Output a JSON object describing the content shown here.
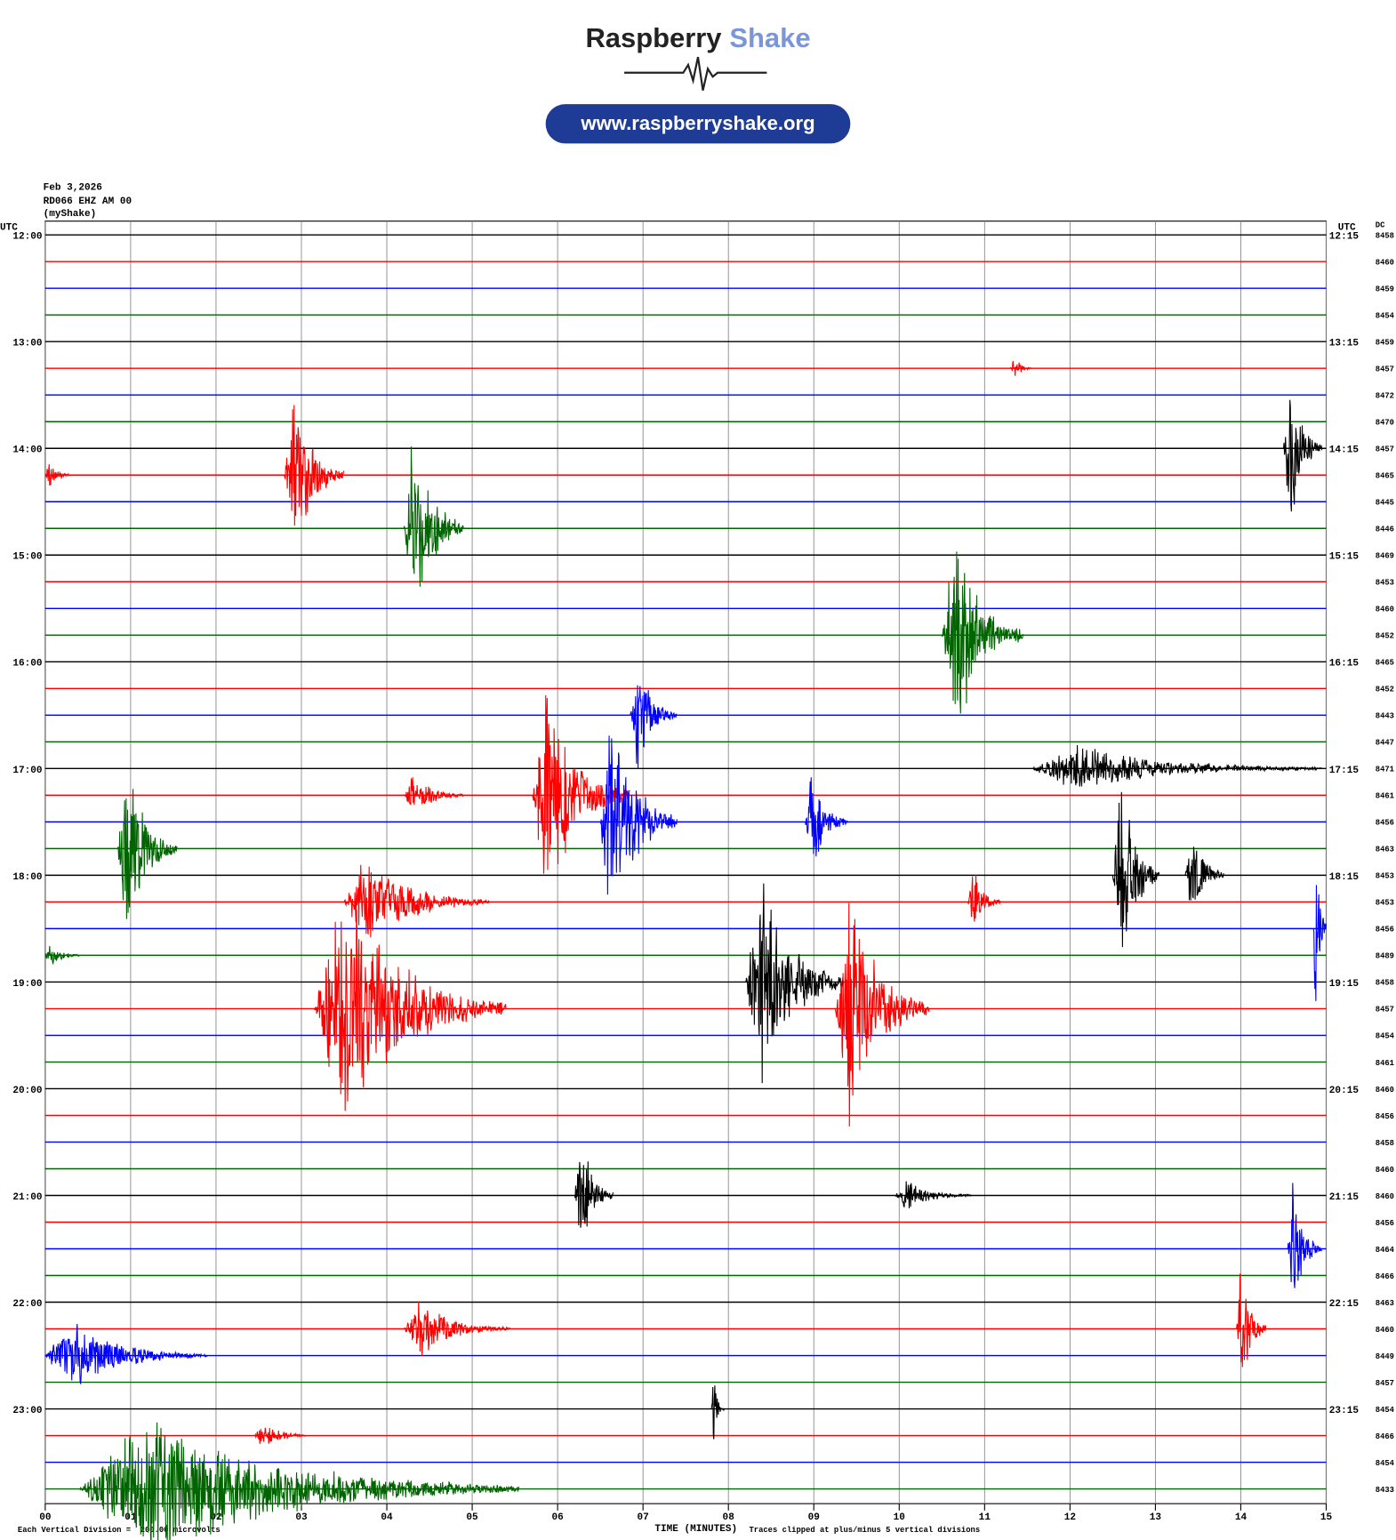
{
  "header": {
    "brand": "Raspberry",
    "brand_accent": "Shake",
    "url": "www.raspberryshake.org"
  },
  "chart_data": {
    "type": "helicorder",
    "date": "Feb 3,2026",
    "station": "RD066 EHZ AM 00",
    "owner": "(myShake)",
    "left_axis_label": "UTC",
    "right_axis_label": "UTC",
    "dc_label": "DC",
    "xlabel": "TIME (MINUTES)",
    "footer_left": "Each Vertical Division =  200.00 microvolts",
    "footer_right": "Traces clipped at plus/minus 5 vertical divisions",
    "xlim": [
      0,
      15
    ],
    "xticks": [
      {
        "value": 0,
        "label": "00"
      },
      {
        "value": 1,
        "label": "01"
      },
      {
        "value": 2,
        "label": "02"
      },
      {
        "value": 3,
        "label": "03"
      },
      {
        "value": 4,
        "label": "04"
      },
      {
        "value": 5,
        "label": "05"
      },
      {
        "value": 6,
        "label": "06"
      },
      {
        "value": 7,
        "label": "07"
      },
      {
        "value": 8,
        "label": "08"
      },
      {
        "value": 9,
        "label": "09"
      },
      10,
      11,
      12,
      13,
      14,
      15
    ],
    "colors": [
      "#000000",
      "#ff0000",
      "#0000ff",
      "#006400"
    ],
    "row_labels_left": [
      "12:00",
      "13:00",
      "14:00",
      "15:00",
      "16:00",
      "17:00",
      "18:00",
      "19:00",
      "20:00",
      "21:00",
      "22:00",
      "23:00"
    ],
    "row_labels_right": [
      "12:15",
      "13:15",
      "14:15",
      "15:15",
      "16:15",
      "17:15",
      "18:15",
      "19:15",
      "20:15",
      "21:15",
      "22:15",
      "23:15"
    ],
    "dc": [
      8458,
      8460,
      8459,
      8454,
      8459,
      8457,
      8472,
      8470,
      8457,
      8465,
      8445,
      8446,
      8469,
      8453,
      8460,
      8452,
      8465,
      8452,
      8443,
      8447,
      8471,
      8461,
      8456,
      8463,
      8453,
      8453,
      8456,
      8489,
      8458,
      8457,
      8454,
      8461,
      8460,
      8456,
      8458,
      8460,
      8460,
      8456,
      8464,
      8466,
      8463,
      8460,
      8449,
      8457,
      8454,
      8466,
      8454,
      8433
    ],
    "events": [
      {
        "trace": 5,
        "start": 11.3,
        "end": 11.55,
        "amplitude": 0.6
      },
      {
        "trace": 8,
        "start": 14.5,
        "end": 14.95,
        "amplitude": 3.5
      },
      {
        "trace": 9,
        "start": 0,
        "end": 0.3,
        "amplitude": 0.6
      },
      {
        "trace": 9,
        "start": 2.8,
        "end": 3.5,
        "amplitude": 3.5
      },
      {
        "trace": 11,
        "start": 4.2,
        "end": 4.9,
        "amplitude": 4.5
      },
      {
        "trace": 15,
        "start": 10.5,
        "end": 11.45,
        "amplitude": 4.5
      },
      {
        "trace": 18,
        "start": 6.85,
        "end": 7.4,
        "amplitude": 2.5
      },
      {
        "trace": 20,
        "start": 11.55,
        "end": 14.95,
        "amplitude": 1
      },
      {
        "trace": 21,
        "start": 5.7,
        "end": 6.85,
        "amplitude": 4.5
      },
      {
        "trace": 21,
        "start": 4.2,
        "end": 4.9,
        "amplitude": 1
      },
      {
        "trace": 22,
        "start": 6.5,
        "end": 7.4,
        "amplitude": 5
      },
      {
        "trace": 22,
        "start": 8.9,
        "end": 9.4,
        "amplitude": 2.5
      },
      {
        "trace": 23,
        "start": 0.85,
        "end": 1.55,
        "amplitude": 4
      },
      {
        "trace": 24,
        "start": 12.5,
        "end": 13.05,
        "amplitude": 5
      },
      {
        "trace": 24,
        "start": 13.35,
        "end": 13.8,
        "amplitude": 2.5
      },
      {
        "trace": 25,
        "start": 3.5,
        "end": 5.2,
        "amplitude": 2
      },
      {
        "trace": 25,
        "start": 10.8,
        "end": 11.2,
        "amplitude": 1.5
      },
      {
        "trace": 26,
        "start": 14.85,
        "end": 15,
        "amplitude": 5
      },
      {
        "trace": 27,
        "start": 0,
        "end": 0.4,
        "amplitude": 0.6
      },
      {
        "trace": 28,
        "start": 8.2,
        "end": 9.35,
        "amplitude": 5
      },
      {
        "trace": 29,
        "start": 3.15,
        "end": 5.4,
        "amplitude": 5
      },
      {
        "trace": 29,
        "start": 9.25,
        "end": 10.35,
        "amplitude": 5
      },
      {
        "trace": 36,
        "start": 6.2,
        "end": 6.65,
        "amplitude": 3
      },
      {
        "trace": 36,
        "start": 9.95,
        "end": 10.85,
        "amplitude": 0.7
      },
      {
        "trace": 38,
        "start": 14.55,
        "end": 14.95,
        "amplitude": 3
      },
      {
        "trace": 41,
        "start": 4.2,
        "end": 5.45,
        "amplitude": 1.2
      },
      {
        "trace": 41,
        "start": 13.95,
        "end": 14.3,
        "amplitude": 3
      },
      {
        "trace": 42,
        "start": 0,
        "end": 1.9,
        "amplitude": 1.5
      },
      {
        "trace": 44,
        "start": 7.8,
        "end": 7.95,
        "amplitude": 1.5
      },
      {
        "trace": 45,
        "start": 2.45,
        "end": 3.05,
        "amplitude": 0.7
      },
      {
        "trace": 47,
        "start": 0.4,
        "end": 5.55,
        "amplitude": 3
      }
    ]
  }
}
